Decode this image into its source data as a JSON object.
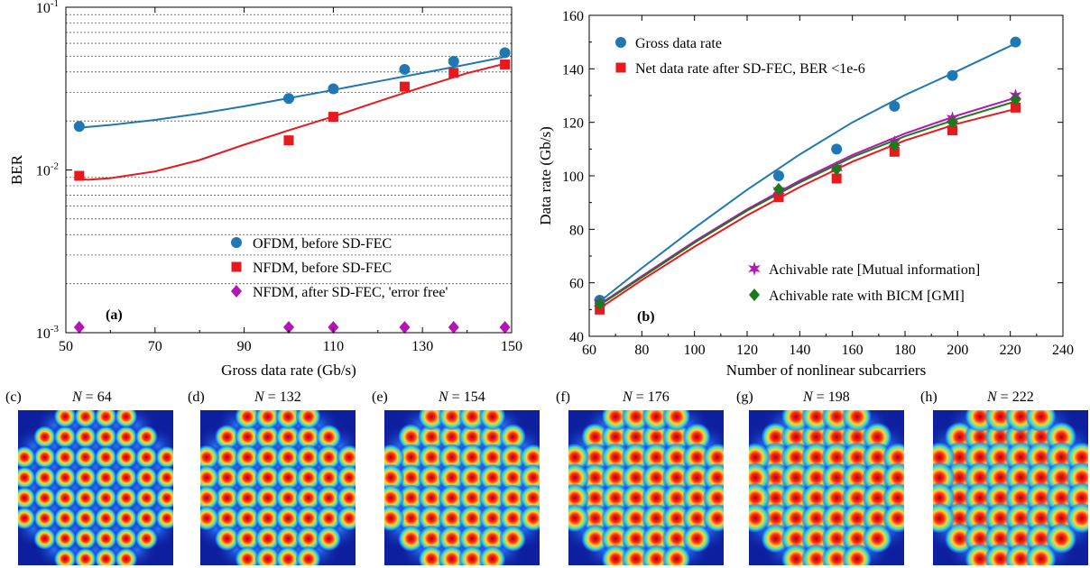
{
  "chart_data": [
    {
      "id": "a",
      "type": "scatter",
      "panel_label": "(a)",
      "xlabel": "Gross data rate (Gb/s)",
      "ylabel": "BER",
      "xlim": [
        50,
        150
      ],
      "ylim": [
        0.001,
        0.1
      ],
      "yscale": "log",
      "xticks": [
        "50",
        "70",
        "90",
        "110",
        "130",
        "150"
      ],
      "yticks": [
        {
          "value": 0.001,
          "base": "10",
          "exp": "-3"
        },
        {
          "value": 0.01,
          "base": "10",
          "exp": "-2"
        },
        {
          "value": 0.1,
          "base": "10",
          "exp": "-1"
        }
      ],
      "grid": "horizontal dotted at log minor ticks",
      "legend_position": "lower-right",
      "series": [
        {
          "name": "OFDM, before SD-FEC",
          "marker": "circle",
          "color": "#1f77b4",
          "x": [
            53,
            100,
            110,
            126,
            137,
            148.5
          ],
          "y": [
            0.0185,
            0.0275,
            0.0315,
            0.0415,
            0.0465,
            0.0525
          ],
          "fit_x": [
            53,
            60,
            70,
            80,
            90,
            100,
            110,
            120,
            130,
            140,
            148.5
          ],
          "fit_y": [
            0.0182,
            0.0189,
            0.0203,
            0.0222,
            0.0246,
            0.0276,
            0.031,
            0.035,
            0.0394,
            0.0445,
            0.0495
          ]
        },
        {
          "name": "NFDM, before SD-FEC",
          "marker": "square",
          "color": "#e8191d",
          "x": [
            53,
            100,
            110,
            126,
            137,
            148.5
          ],
          "y": [
            0.0092,
            0.0152,
            0.0212,
            0.0325,
            0.0395,
            0.0445
          ],
          "fit_x": [
            53,
            55,
            60,
            70,
            80,
            90,
            100,
            110,
            120,
            130,
            140,
            148.5
          ],
          "fit_y": [
            0.0088,
            0.0087,
            0.0089,
            0.0098,
            0.0115,
            0.0143,
            0.0175,
            0.0213,
            0.0263,
            0.0323,
            0.0393,
            0.045
          ]
        },
        {
          "name": "NFDM, after SD-FEC, 'error free'",
          "marker": "diamond",
          "color": "#b515b5",
          "x": [
            53,
            100,
            110,
            126,
            137,
            148.5
          ],
          "y": [
            0.001,
            0.001,
            0.001,
            0.001,
            0.001,
            0.001
          ]
        }
      ]
    },
    {
      "id": "b",
      "type": "scatter",
      "panel_label": "(b)",
      "xlabel": "Number of nonlinear subcarriers",
      "ylabel": "Data rate (Gb/s)",
      "xlim": [
        60,
        240
      ],
      "ylim": [
        40,
        160
      ],
      "xticks": [
        "60",
        "80",
        "100",
        "120",
        "140",
        "160",
        "180",
        "200",
        "220",
        "240"
      ],
      "yticks": [
        "40",
        "60",
        "80",
        "100",
        "120",
        "140",
        "160"
      ],
      "grid": "none",
      "legend_position": "top-left and bottom-right",
      "series": [
        {
          "name": "Gross data rate",
          "marker": "circle",
          "color": "#1f77b4",
          "x": [
            64,
            132,
            154,
            176,
            198,
            222
          ],
          "y": [
            53.5,
            100,
            110,
            126,
            137.5,
            150
          ],
          "fit_x": [
            64,
            80,
            100,
            120,
            140,
            160,
            180,
            200,
            222
          ],
          "fit_y": [
            53,
            65.5,
            80.5,
            94.8,
            108,
            120,
            130.2,
            139.2,
            149.5
          ]
        },
        {
          "name": "Net data rate after SD-FEC, BER <1e-6",
          "marker": "square",
          "color": "#e8191d",
          "x": [
            64,
            132,
            154,
            176,
            198,
            222
          ],
          "y": [
            50,
            92,
            99,
            109,
            117,
            125.5
          ],
          "fit_x": [
            64,
            80,
            100,
            120,
            140,
            160,
            180,
            200,
            222
          ],
          "fit_y": [
            50.5,
            61,
            73.5,
            85.2,
            95.8,
            105.3,
            113.2,
            119.5,
            125
          ]
        },
        {
          "name": "Achivable rate [Mutual information]",
          "marker": "star",
          "color": "#b515b5",
          "x": [
            64,
            132,
            154,
            176,
            198,
            222
          ],
          "y": [
            52.5,
            94.5,
            103,
            112.5,
            121.5,
            130
          ],
          "fit_x": [
            64,
            80,
            100,
            120,
            140,
            160,
            180,
            200,
            222
          ],
          "fit_y": [
            52,
            62.5,
            75.5,
            87.5,
            98.2,
            107.8,
            115.8,
            122.6,
            129.2
          ]
        },
        {
          "name": "Achivable rate with BICM [GMI]",
          "marker": "diamond",
          "color": "#1b7a1b",
          "x": [
            64,
            132,
            154,
            176,
            198,
            222
          ],
          "y": [
            52.2,
            95,
            102.5,
            111.5,
            120,
            128.5
          ],
          "fit_x": [
            64,
            80,
            100,
            120,
            140,
            160,
            180,
            200,
            222
          ],
          "fit_y": [
            51.7,
            62,
            75,
            87,
            97.5,
            107,
            114.8,
            121.3,
            127.8
          ]
        }
      ]
    },
    {
      "type": "heatmap",
      "description_labels": true,
      "panels": [
        {
          "tag": "(c)",
          "n_label": "N",
          "n_value": "= 64",
          "spread": 0.14
        },
        {
          "tag": "(d)",
          "n_label": "N",
          "n_value": "= 132",
          "spread": 0.2
        },
        {
          "tag": "(e)",
          "n_label": "N",
          "n_value": "= 154",
          "spread": 0.24
        },
        {
          "tag": "(f)",
          "n_label": "N",
          "n_value": "= 176",
          "spread": 0.28
        },
        {
          "tag": "(g)",
          "n_label": "N",
          "n_value": "= 198",
          "spread": 0.31
        },
        {
          "tag": "(h)",
          "n_label": "N",
          "n_value": "= 222",
          "spread": 0.34
        }
      ],
      "colors": {
        "background": "#0d1f9e",
        "low": "#2a7bff",
        "mid": "#3fe0c0",
        "high": "#ffd23a",
        "peak": "#e3120b"
      }
    }
  ]
}
